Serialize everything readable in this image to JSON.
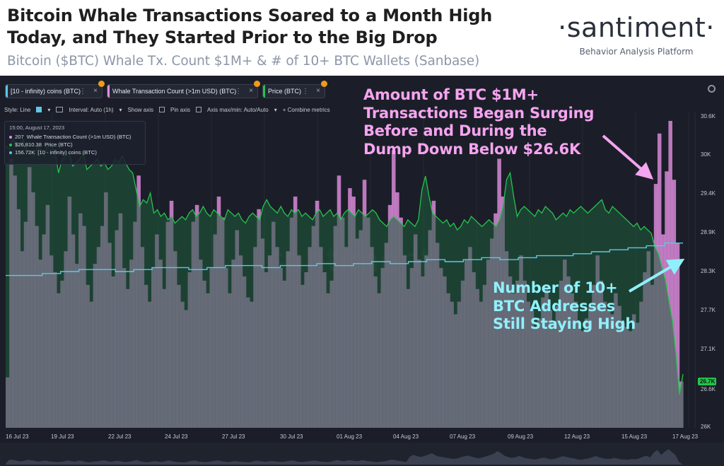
{
  "header": {
    "title_line1": "Bitcoin Whale Transactions Soared to a Month High",
    "title_line2": "Today, and They Started Prior to the Big Drop",
    "subtitle": "Bitcoin ($BTC) Whale Tx. Count $1M+ & # of 10+ BTC Wallets (Sanbase)"
  },
  "brand": {
    "name": "·santiment·",
    "tagline": "Behavior Analysis Platform",
    "watermark": "santiment"
  },
  "metric_tags": [
    {
      "label": "[10 - infinity) coins (BTC)",
      "color": "#5ec7e6"
    },
    {
      "label": "Whale Transaction Count (>1m USD) (BTC)",
      "color": "#e48fe2"
    },
    {
      "label": "Price (BTC)",
      "color": "#26c34d"
    }
  ],
  "toolbar": {
    "style_label": "Style: Line",
    "interval_label": "Interval: Auto (1h)",
    "show_axis_label": "Show axis",
    "pin_axis_label": "Pin axis",
    "axis_minmax_label": "Axis max/min: Auto/Auto",
    "combine_label": "+ Combine metrics",
    "menu_dots": "⋮",
    "close_mark": "×",
    "caret": "▾"
  },
  "tooltip": {
    "date": "15:00, August 17, 2023",
    "rows": [
      {
        "value": "207",
        "label": "Whale Transaction Count (>1m USD) (BTC)",
        "color": "#e48fe2"
      },
      {
        "value": "$26,810.38",
        "label": "Price (BTC)",
        "color": "#26c34d"
      },
      {
        "value": "156.72K",
        "label": "[10 - infinity) coins (BTC)",
        "color": "#5ec7e6"
      }
    ]
  },
  "annotations": {
    "pink": [
      "Amount of BTC $1M+",
      "Transactions Began Surging",
      "Before and During the",
      "Dump Down Below $26.6K"
    ],
    "cyan": [
      "Number of 10+",
      "BTC Addresses",
      "Still Staying High"
    ]
  },
  "colors": {
    "background": "#1b1e28",
    "whale_tx": "#e48fe2",
    "price": "#26c34d",
    "holders": "#5ec7e6",
    "current_price_badge": "#26c34d",
    "annotation_pink": "#f5a4ef",
    "annotation_cyan": "#8ff0fb"
  },
  "chart_data": {
    "type": "bar",
    "x_start": "2023-07-16",
    "x_end": "2023-08-17",
    "x_tick_labels": [
      "16 Jul 23",
      "19 Jul 23",
      "22 Jul 23",
      "24 Jul 23",
      "27 Jul 23",
      "30 Jul 23",
      "01 Aug 23",
      "04 Aug 23",
      "07 Aug 23",
      "09 Aug 23",
      "12 Aug 23",
      "15 Aug 23",
      "17 Aug 23"
    ],
    "y_right_ticks": [
      "30.6K",
      "30K",
      "29.4K",
      "28.9K",
      "28.3K",
      "27.7K",
      "27.1K",
      "26.6K",
      "26K"
    ],
    "y_right_range": [
      26000,
      30700
    ],
    "current_price_label": "26.7K",
    "grid": true,
    "series": [
      {
        "name": "Whale Transaction Count (>1m USD) (BTC)",
        "type": "bar",
        "values": [
          60,
          320,
          300,
          260,
          210,
          245,
          310,
          280,
          240,
          200,
          230,
          265,
          205,
          185,
          160,
          175,
          210,
          275,
          230,
          195,
          255,
          240,
          170,
          150,
          195,
          215,
          240,
          280,
          220,
          180,
          235,
          255,
          190,
          165,
          200,
          245,
          300,
          215,
          170,
          150,
          190,
          230,
          200,
          165,
          245,
          270,
          210,
          170,
          150,
          140,
          185,
          245,
          265,
          200,
          175,
          160,
          190,
          230,
          275,
          250,
          190,
          160,
          200,
          235,
          205,
          180,
          155,
          150,
          215,
          260,
          225,
          185,
          205,
          245,
          215,
          190,
          175,
          210,
          250,
          275,
          205,
          170,
          185,
          215,
          240,
          270,
          215,
          185,
          160,
          175,
          240,
          300,
          250,
          215,
          285,
          275,
          225,
          235,
          295,
          250,
          215,
          180,
          160,
          190,
          220,
          265,
          330,
          280,
          250,
          205,
          165,
          190,
          230,
          200,
          180,
          205,
          235,
          270,
          220,
          190,
          180,
          160,
          150,
          135,
          150,
          175,
          200,
          215,
          185,
          165,
          150,
          170,
          200,
          225,
          255,
          320,
          275,
          210,
          180,
          160,
          175,
          205,
          175,
          150,
          140,
          120,
          130,
          155,
          165,
          140,
          125,
          145,
          175,
          200,
          180,
          160,
          150,
          125,
          115,
          130,
          145,
          170,
          205,
          175,
          150,
          140,
          135,
          160,
          145,
          125,
          120,
          115,
          135,
          125,
          150,
          185,
          210,
          170,
          290,
          350,
          230,
          305,
          365,
          295,
          220,
          55
        ]
      },
      {
        "name": "Price (BTC)",
        "type": "area",
        "values": [
          30200,
          30150,
          30300,
          30250,
          30200,
          30300,
          30150,
          30100,
          30050,
          30200,
          30150,
          30050,
          30250,
          30200,
          30100,
          29800,
          30000,
          30050,
          30100,
          29900,
          29950,
          30000,
          30100,
          29850,
          29900,
          29950,
          30000,
          29900,
          29950,
          29850,
          29900,
          30000,
          29950,
          30050,
          29950,
          29850,
          29800,
          29550,
          29300,
          29400,
          29350,
          29500,
          29200,
          29250,
          29150,
          29200,
          29100,
          29150,
          29050,
          29100,
          29150,
          29100,
          29200,
          29250,
          29150,
          29200,
          29300,
          29200,
          29150,
          29250,
          29200,
          29150,
          29100,
          29250,
          29200,
          29150,
          29200,
          29100,
          29050,
          29150,
          29200,
          29150,
          29100,
          29300,
          29400,
          29300,
          29250,
          29200,
          29300,
          29200,
          29150,
          29250,
          29200,
          29250,
          29150,
          29200,
          29150,
          29100,
          29200,
          29250,
          29150,
          29200,
          29250,
          29150,
          29200,
          29100,
          29200,
          29250,
          29200,
          29150,
          29250,
          29200,
          29150,
          29200,
          29250,
          29200,
          29100,
          29050,
          29000,
          29100,
          29150,
          29100,
          29050,
          29000,
          29100,
          29050,
          29000,
          29100,
          29550,
          29750,
          29450,
          29200,
          29150,
          29100,
          29050,
          29100,
          29000,
          29050,
          28950,
          29000,
          29100,
          29050,
          29150,
          29100,
          29050,
          29000,
          29050,
          29100,
          29050,
          29000,
          29100,
          29300,
          29700,
          29800,
          29450,
          29150,
          29250,
          29300,
          29250,
          29200,
          29150,
          29250,
          29200,
          29300,
          29250,
          29200,
          29100,
          29150,
          29200,
          29150,
          29250,
          29200,
          29250,
          29300,
          29250,
          29200,
          29250,
          29300,
          29350,
          29400,
          29250,
          29200,
          29300,
          29250,
          29200,
          29150,
          29100,
          29050,
          29000,
          29050,
          28950,
          29000,
          28950,
          28900,
          28700,
          28600,
          28400,
          28200,
          27900,
          27600,
          27100,
          26500,
          26800
        ]
      },
      {
        "name": "[10 - infinity) coins (BTC)",
        "type": "line",
        "values": [
          155900,
          155900,
          155950,
          156000,
          156050,
          156050,
          156000,
          156050,
          156100,
          156100,
          156050,
          156100,
          156150,
          156150,
          156100,
          156150,
          156150,
          156200,
          156150,
          156200,
          156250,
          156200,
          156250,
          156300,
          156250,
          156300,
          156350,
          156300,
          156350,
          156400,
          156400,
          156450,
          156500,
          156550,
          156600,
          156650,
          156720
        ]
      }
    ]
  }
}
